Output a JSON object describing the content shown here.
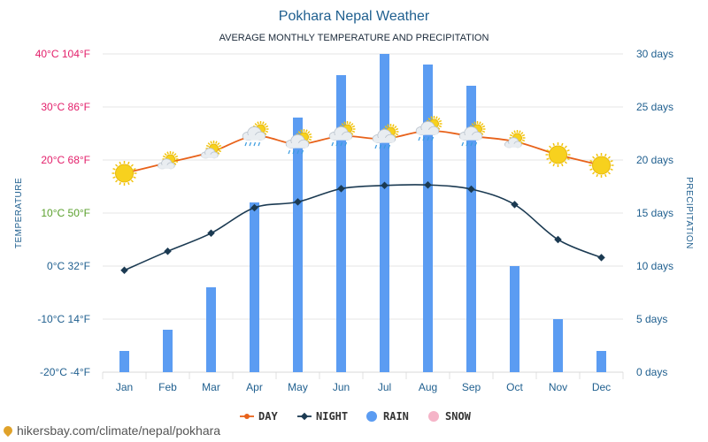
{
  "chart_data": {
    "type": "bar+line",
    "title": "Pokhara Nepal Weather",
    "subtitle": "AVERAGE MONTHLY TEMPERATURE AND PRECIPITATION",
    "categories": [
      "Jan",
      "Feb",
      "Mar",
      "Apr",
      "May",
      "Jun",
      "Jul",
      "Aug",
      "Sep",
      "Oct",
      "Nov",
      "Dec"
    ],
    "left_axis": {
      "label": "TEMPERATURE",
      "range_c": [
        -20,
        40
      ],
      "ticks": [
        "40°C 104°F",
        "30°C 86°F",
        "20°C 68°F",
        "10°C 50°F",
        "0°C 32°F",
        "-10°C 14°F",
        "-20°C -4°F"
      ],
      "tick_colors": [
        "#e3206b",
        "#e3206b",
        "#e3206b",
        "#5aa02c",
        "#1f5f8f",
        "#1f5f8f",
        "#1f5f8f"
      ]
    },
    "right_axis": {
      "label": "PRECIPITATION",
      "range_days": [
        0,
        30
      ],
      "ticks": [
        "30 days",
        "25 days",
        "20 days",
        "15 days",
        "10 days",
        "5 days",
        "0 days"
      ]
    },
    "series": [
      {
        "name": "DAY",
        "type": "line",
        "color": "#e8621a",
        "values": [
          17.5,
          19.5,
          21.5,
          24.5,
          23.0,
          24.5,
          24.0,
          25.5,
          24.5,
          23.5,
          21.0,
          19.0
        ]
      },
      {
        "name": "NIGHT",
        "type": "line",
        "color": "#1b3a52",
        "values": [
          -0.8,
          2.8,
          6.2,
          11.0,
          12.1,
          14.6,
          15.2,
          15.3,
          14.5,
          11.6,
          5.0,
          1.6
        ]
      },
      {
        "name": "RAIN",
        "type": "bar",
        "color": "#5b9cf2",
        "values": [
          2,
          4,
          8,
          16,
          24,
          28,
          30,
          29,
          27,
          10,
          5,
          2
        ]
      },
      {
        "name": "SNOW",
        "type": "bar",
        "color": "#f5b4c8",
        "values": [
          0,
          0,
          0,
          0,
          0,
          0,
          0,
          0,
          0,
          0,
          0,
          0
        ]
      }
    ],
    "weather_icons": [
      "sun-icon",
      "partly-cloudy-icon",
      "partly-cloudy-icon",
      "rain-cloud-icon",
      "rain-cloud-icon",
      "rain-cloud-icon",
      "rain-cloud-icon",
      "rain-cloud-icon",
      "rain-cloud-icon",
      "partly-cloudy-icon",
      "sun-icon",
      "sun-icon"
    ],
    "legend": {
      "position": "bottom-center"
    },
    "grid": true
  },
  "source": {
    "text": "hikersbay.com/climate/nepal/pokhara",
    "icon": "location-pin-icon"
  }
}
